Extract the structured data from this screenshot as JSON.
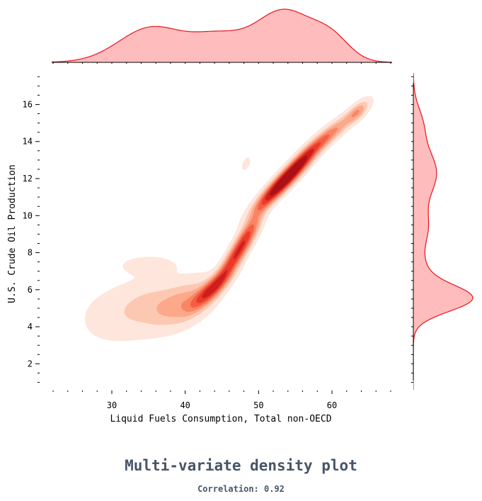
{
  "chart_data": {
    "type": "kde-joint",
    "title": "Multi-variate density plot",
    "subtitle": "Correlation: 0.92",
    "xlabel": "Liquid Fuels Consumption, Total non-OECD",
    "ylabel": "U.S. Crude Oil Production",
    "xlim": [
      21.8,
      68.2
    ],
    "ylim": [
      0.6,
      17.7
    ],
    "xticks": [
      30,
      40,
      50,
      60
    ],
    "yticks": [
      2,
      4,
      6,
      8,
      10,
      12,
      14,
      16
    ],
    "colors": {
      "levels": [
        "#fee6dc",
        "#fdc8b2",
        "#fca88a",
        "#fb8465",
        "#f65f44",
        "#e93a2c",
        "#cd1f1f",
        "#ab1117"
      ],
      "marginal_fill": "#ffbcbc",
      "marginal_line": "#e8141e"
    },
    "joint_components": [
      {
        "mx": 30.5,
        "my": 4.6,
        "sx": 3.3,
        "sy": 1.0,
        "rho": 0.15,
        "w": 0.1
      },
      {
        "mx": 35.5,
        "my": 5.2,
        "sx": 3.0,
        "sy": 0.9,
        "rho": 0.2,
        "w": 0.15
      },
      {
        "mx": 40.0,
        "my": 5.3,
        "sx": 2.6,
        "sy": 0.8,
        "rho": 0.5,
        "w": 0.18
      },
      {
        "mx": 43.5,
        "my": 6.0,
        "sx": 1.8,
        "sy": 0.7,
        "rho": 0.85,
        "w": 0.14
      },
      {
        "mx": 46.5,
        "my": 7.6,
        "sx": 1.7,
        "sy": 1.0,
        "rho": 0.9,
        "w": 0.14
      },
      {
        "mx": 48.5,
        "my": 9.0,
        "sx": 1.4,
        "sy": 0.9,
        "rho": 0.85,
        "w": 0.1
      },
      {
        "mx": 52.0,
        "my": 11.3,
        "sx": 1.9,
        "sy": 0.8,
        "rho": 0.9,
        "w": 0.14
      },
      {
        "mx": 55.0,
        "my": 12.5,
        "sx": 2.1,
        "sy": 0.9,
        "rho": 0.92,
        "w": 0.24
      },
      {
        "mx": 59.5,
        "my": 14.3,
        "sx": 2.3,
        "sy": 0.8,
        "rho": 0.92,
        "w": 0.1
      },
      {
        "mx": 63.5,
        "my": 15.6,
        "sx": 1.0,
        "sy": 0.4,
        "rho": 0.7,
        "w": 0.03
      },
      {
        "mx": 35.0,
        "my": 7.3,
        "sx": 2.2,
        "sy": 0.3,
        "rho": 0.0,
        "w": 0.03
      },
      {
        "mx": 48.3,
        "my": 12.8,
        "sx": 0.4,
        "sy": 0.25,
        "rho": 0.5,
        "w": 0.003
      }
    ],
    "marginal_x": [
      {
        "m": 35.5,
        "s": 4.5,
        "w": 0.32
      },
      {
        "m": 44.5,
        "s": 3.5,
        "w": 0.16
      },
      {
        "m": 53.5,
        "s": 4.0,
        "w": 0.42
      },
      {
        "m": 60.0,
        "s": 2.5,
        "w": 0.1
      }
    ],
    "marginal_y": [
      {
        "m": 5.5,
        "s": 0.7,
        "w": 0.38
      },
      {
        "m": 6.8,
        "s": 1.0,
        "w": 0.12
      },
      {
        "m": 9.3,
        "s": 1.0,
        "w": 0.13
      },
      {
        "m": 12.3,
        "s": 1.3,
        "w": 0.3
      },
      {
        "m": 15.0,
        "s": 0.9,
        "w": 0.07
      }
    ]
  }
}
